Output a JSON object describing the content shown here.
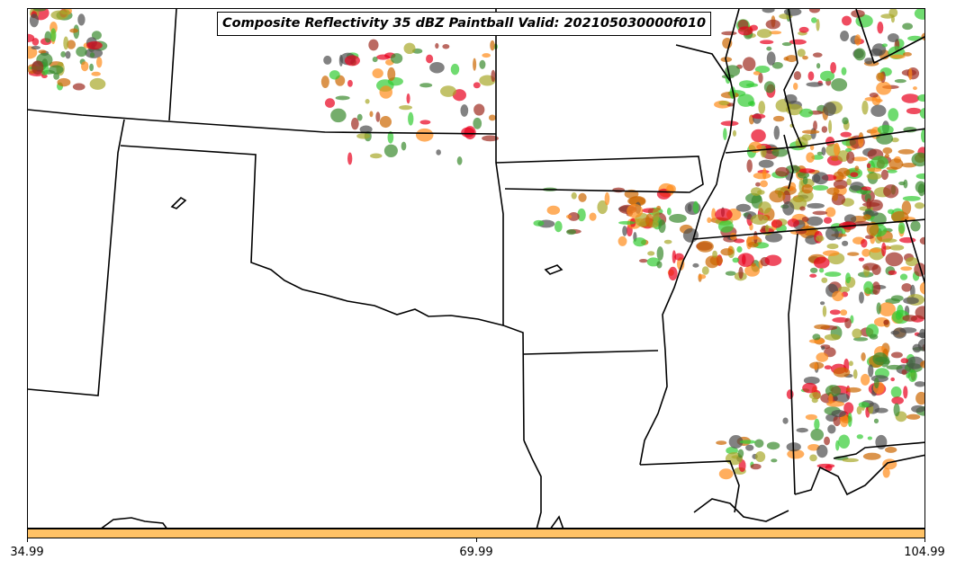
{
  "title": "Composite Reflectivity 35 dBZ Paintball Valid: 202105030000f010",
  "colorbar": {
    "color": "#ffc266",
    "ticks": [
      "34.99",
      "69.99",
      "104.99"
    ]
  },
  "map": {
    "border_color": "#000000",
    "paintball_colors": [
      "#e8001c",
      "#ff8c1a",
      "#9e2b20",
      "#3a8a2e",
      "#33cc33",
      "#a8a82a",
      "#4d4d4d",
      "#cc6600"
    ]
  }
}
